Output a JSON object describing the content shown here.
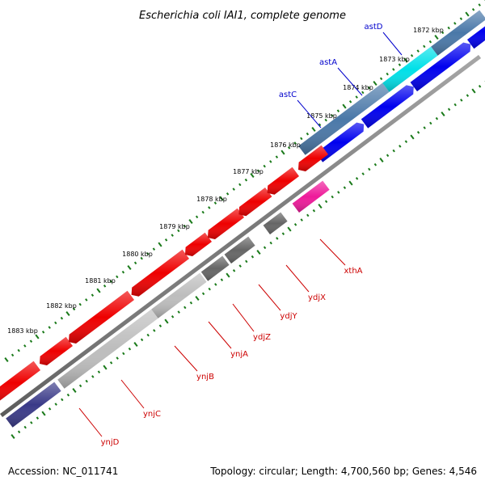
{
  "title": "Escherichia coli IAI1, complete genome",
  "footer": {
    "accession": "Accession: NC_011741",
    "summary": "Topology: circular; Length: 4,700,560 bp; Genes: 4,546"
  },
  "ticks": [
    "1872 kbp",
    "1873 kbp",
    "1874 kbp",
    "1875 kbp",
    "1876 kbp",
    "1877 kbp",
    "1878 kbp",
    "1879 kbp",
    "1880 kbp",
    "1881 kbp",
    "1882 kbp",
    "1883 kbp"
  ],
  "genes_top": [
    {
      "name": "astD",
      "color": "#0000cc"
    },
    {
      "name": "astA",
      "color": "#0000cc"
    },
    {
      "name": "astC",
      "color": "#0000cc"
    }
  ],
  "genes_bottom": [
    {
      "name": "xthA",
      "color": "#cc0000"
    },
    {
      "name": "ydjX",
      "color": "#cc0000"
    },
    {
      "name": "ydjY",
      "color": "#cc0000"
    },
    {
      "name": "ydjZ",
      "color": "#cc0000"
    },
    {
      "name": "ynjA",
      "color": "#cc0000"
    },
    {
      "name": "ynjB",
      "color": "#cc0000"
    },
    {
      "name": "ynjC",
      "color": "#cc0000"
    },
    {
      "name": "ynjD",
      "color": "#cc0000"
    }
  ],
  "colors": {
    "forward_cds": "#0000ee",
    "reverse_cds": "#ee0000",
    "tick": "#1a7a1a",
    "backbone": "#777777",
    "cog_steel": "#4a78a8",
    "cog_cyan": "#00e0e8",
    "cog_magenta": "#ee1a9a",
    "cog_gray": "#666666",
    "cog_lightgray": "#bdbdbd",
    "cog_navy": "#3a3a88"
  }
}
